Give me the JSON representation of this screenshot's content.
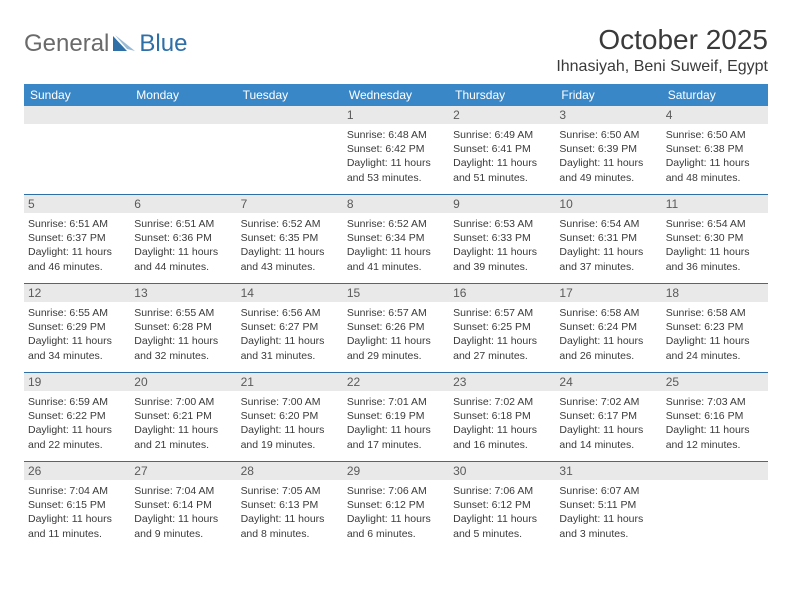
{
  "logo": {
    "general": "General",
    "blue": "Blue"
  },
  "title": "October 2025",
  "location": "Ihnasiyah, Beni Suweif, Egypt",
  "colors": {
    "header_bg": "#3a87c7",
    "rule": "#2f6fa8",
    "daynum_bg": "#e9e9e9",
    "text": "#3a3a3a",
    "logo_gray": "#6a6a6a",
    "logo_blue": "#2f6fa8"
  },
  "weekdays": [
    "Sunday",
    "Monday",
    "Tuesday",
    "Wednesday",
    "Thursday",
    "Friday",
    "Saturday"
  ],
  "weeks": [
    [
      {
        "day": "",
        "sunrise": "",
        "sunset": "",
        "daylight1": "",
        "daylight2": ""
      },
      {
        "day": "",
        "sunrise": "",
        "sunset": "",
        "daylight1": "",
        "daylight2": ""
      },
      {
        "day": "",
        "sunrise": "",
        "sunset": "",
        "daylight1": "",
        "daylight2": ""
      },
      {
        "day": "1",
        "sunrise": "Sunrise: 6:48 AM",
        "sunset": "Sunset: 6:42 PM",
        "daylight1": "Daylight: 11 hours",
        "daylight2": "and 53 minutes."
      },
      {
        "day": "2",
        "sunrise": "Sunrise: 6:49 AM",
        "sunset": "Sunset: 6:41 PM",
        "daylight1": "Daylight: 11 hours",
        "daylight2": "and 51 minutes."
      },
      {
        "day": "3",
        "sunrise": "Sunrise: 6:50 AM",
        "sunset": "Sunset: 6:39 PM",
        "daylight1": "Daylight: 11 hours",
        "daylight2": "and 49 minutes."
      },
      {
        "day": "4",
        "sunrise": "Sunrise: 6:50 AM",
        "sunset": "Sunset: 6:38 PM",
        "daylight1": "Daylight: 11 hours",
        "daylight2": "and 48 minutes."
      }
    ],
    [
      {
        "day": "5",
        "sunrise": "Sunrise: 6:51 AM",
        "sunset": "Sunset: 6:37 PM",
        "daylight1": "Daylight: 11 hours",
        "daylight2": "and 46 minutes."
      },
      {
        "day": "6",
        "sunrise": "Sunrise: 6:51 AM",
        "sunset": "Sunset: 6:36 PM",
        "daylight1": "Daylight: 11 hours",
        "daylight2": "and 44 minutes."
      },
      {
        "day": "7",
        "sunrise": "Sunrise: 6:52 AM",
        "sunset": "Sunset: 6:35 PM",
        "daylight1": "Daylight: 11 hours",
        "daylight2": "and 43 minutes."
      },
      {
        "day": "8",
        "sunrise": "Sunrise: 6:52 AM",
        "sunset": "Sunset: 6:34 PM",
        "daylight1": "Daylight: 11 hours",
        "daylight2": "and 41 minutes."
      },
      {
        "day": "9",
        "sunrise": "Sunrise: 6:53 AM",
        "sunset": "Sunset: 6:33 PM",
        "daylight1": "Daylight: 11 hours",
        "daylight2": "and 39 minutes."
      },
      {
        "day": "10",
        "sunrise": "Sunrise: 6:54 AM",
        "sunset": "Sunset: 6:31 PM",
        "daylight1": "Daylight: 11 hours",
        "daylight2": "and 37 minutes."
      },
      {
        "day": "11",
        "sunrise": "Sunrise: 6:54 AM",
        "sunset": "Sunset: 6:30 PM",
        "daylight1": "Daylight: 11 hours",
        "daylight2": "and 36 minutes."
      }
    ],
    [
      {
        "day": "12",
        "sunrise": "Sunrise: 6:55 AM",
        "sunset": "Sunset: 6:29 PM",
        "daylight1": "Daylight: 11 hours",
        "daylight2": "and 34 minutes."
      },
      {
        "day": "13",
        "sunrise": "Sunrise: 6:55 AM",
        "sunset": "Sunset: 6:28 PM",
        "daylight1": "Daylight: 11 hours",
        "daylight2": "and 32 minutes."
      },
      {
        "day": "14",
        "sunrise": "Sunrise: 6:56 AM",
        "sunset": "Sunset: 6:27 PM",
        "daylight1": "Daylight: 11 hours",
        "daylight2": "and 31 minutes."
      },
      {
        "day": "15",
        "sunrise": "Sunrise: 6:57 AM",
        "sunset": "Sunset: 6:26 PM",
        "daylight1": "Daylight: 11 hours",
        "daylight2": "and 29 minutes."
      },
      {
        "day": "16",
        "sunrise": "Sunrise: 6:57 AM",
        "sunset": "Sunset: 6:25 PM",
        "daylight1": "Daylight: 11 hours",
        "daylight2": "and 27 minutes."
      },
      {
        "day": "17",
        "sunrise": "Sunrise: 6:58 AM",
        "sunset": "Sunset: 6:24 PM",
        "daylight1": "Daylight: 11 hours",
        "daylight2": "and 26 minutes."
      },
      {
        "day": "18",
        "sunrise": "Sunrise: 6:58 AM",
        "sunset": "Sunset: 6:23 PM",
        "daylight1": "Daylight: 11 hours",
        "daylight2": "and 24 minutes."
      }
    ],
    [
      {
        "day": "19",
        "sunrise": "Sunrise: 6:59 AM",
        "sunset": "Sunset: 6:22 PM",
        "daylight1": "Daylight: 11 hours",
        "daylight2": "and 22 minutes."
      },
      {
        "day": "20",
        "sunrise": "Sunrise: 7:00 AM",
        "sunset": "Sunset: 6:21 PM",
        "daylight1": "Daylight: 11 hours",
        "daylight2": "and 21 minutes."
      },
      {
        "day": "21",
        "sunrise": "Sunrise: 7:00 AM",
        "sunset": "Sunset: 6:20 PM",
        "daylight1": "Daylight: 11 hours",
        "daylight2": "and 19 minutes."
      },
      {
        "day": "22",
        "sunrise": "Sunrise: 7:01 AM",
        "sunset": "Sunset: 6:19 PM",
        "daylight1": "Daylight: 11 hours",
        "daylight2": "and 17 minutes."
      },
      {
        "day": "23",
        "sunrise": "Sunrise: 7:02 AM",
        "sunset": "Sunset: 6:18 PM",
        "daylight1": "Daylight: 11 hours",
        "daylight2": "and 16 minutes."
      },
      {
        "day": "24",
        "sunrise": "Sunrise: 7:02 AM",
        "sunset": "Sunset: 6:17 PM",
        "daylight1": "Daylight: 11 hours",
        "daylight2": "and 14 minutes."
      },
      {
        "day": "25",
        "sunrise": "Sunrise: 7:03 AM",
        "sunset": "Sunset: 6:16 PM",
        "daylight1": "Daylight: 11 hours",
        "daylight2": "and 12 minutes."
      }
    ],
    [
      {
        "day": "26",
        "sunrise": "Sunrise: 7:04 AM",
        "sunset": "Sunset: 6:15 PM",
        "daylight1": "Daylight: 11 hours",
        "daylight2": "and 11 minutes."
      },
      {
        "day": "27",
        "sunrise": "Sunrise: 7:04 AM",
        "sunset": "Sunset: 6:14 PM",
        "daylight1": "Daylight: 11 hours",
        "daylight2": "and 9 minutes."
      },
      {
        "day": "28",
        "sunrise": "Sunrise: 7:05 AM",
        "sunset": "Sunset: 6:13 PM",
        "daylight1": "Daylight: 11 hours",
        "daylight2": "and 8 minutes."
      },
      {
        "day": "29",
        "sunrise": "Sunrise: 7:06 AM",
        "sunset": "Sunset: 6:12 PM",
        "daylight1": "Daylight: 11 hours",
        "daylight2": "and 6 minutes."
      },
      {
        "day": "30",
        "sunrise": "Sunrise: 7:06 AM",
        "sunset": "Sunset: 6:12 PM",
        "daylight1": "Daylight: 11 hours",
        "daylight2": "and 5 minutes."
      },
      {
        "day": "31",
        "sunrise": "Sunrise: 6:07 AM",
        "sunset": "Sunset: 5:11 PM",
        "daylight1": "Daylight: 11 hours",
        "daylight2": "and 3 minutes."
      },
      {
        "day": "",
        "sunrise": "",
        "sunset": "",
        "daylight1": "",
        "daylight2": ""
      }
    ]
  ]
}
